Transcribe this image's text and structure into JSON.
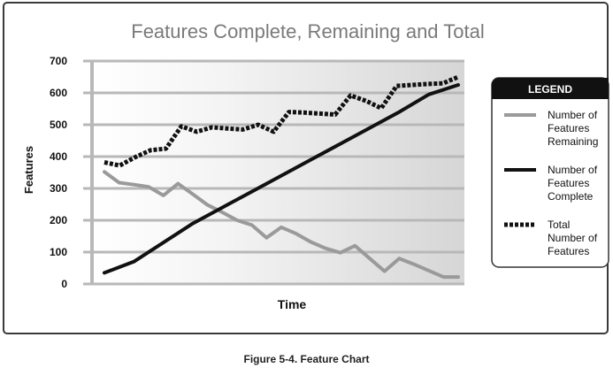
{
  "chart_data": {
    "type": "line",
    "title": "Features Complete, Remaining and Total",
    "xlabel": "Time",
    "ylabel": "Features",
    "ylim": [
      0,
      700
    ],
    "yticks": [
      0,
      100,
      200,
      300,
      400,
      500,
      600,
      700
    ],
    "grid": true,
    "legend": {
      "title": "LEGEND",
      "position": "right"
    },
    "series": [
      {
        "name": "Number of Features Remaining",
        "legend_lines": [
          "Number of",
          "Features",
          "Remaining"
        ],
        "style": "solid",
        "color": "#9a9a9a",
        "values": [
          352,
          318,
          312,
          305,
          278,
          315,
          282,
          248,
          225,
          200,
          185,
          145,
          178,
          158,
          132,
          112,
          98,
          120,
          80,
          40,
          80,
          62,
          42,
          22,
          22
        ]
      },
      {
        "name": "Number of Features Complete",
        "legend_lines": [
          "Number of",
          "Features",
          "Complete"
        ],
        "style": "solid",
        "color": "#111111",
        "values": [
          35,
          70,
          130,
          190,
          240,
          290,
          340,
          390,
          440,
          490,
          540,
          595,
          625
        ]
      },
      {
        "name": "Total Number of Features",
        "legend_lines": [
          "Total",
          "Number of",
          "Features"
        ],
        "style": "dotted",
        "color": "#111111",
        "values": [
          382,
          372,
          398,
          420,
          425,
          495,
          478,
          492,
          488,
          485,
          500,
          478,
          540,
          538,
          535,
          532,
          592,
          575,
          552,
          622,
          625,
          628,
          630,
          650
        ]
      }
    ]
  },
  "caption": "Figure 5-4. Feature Chart"
}
